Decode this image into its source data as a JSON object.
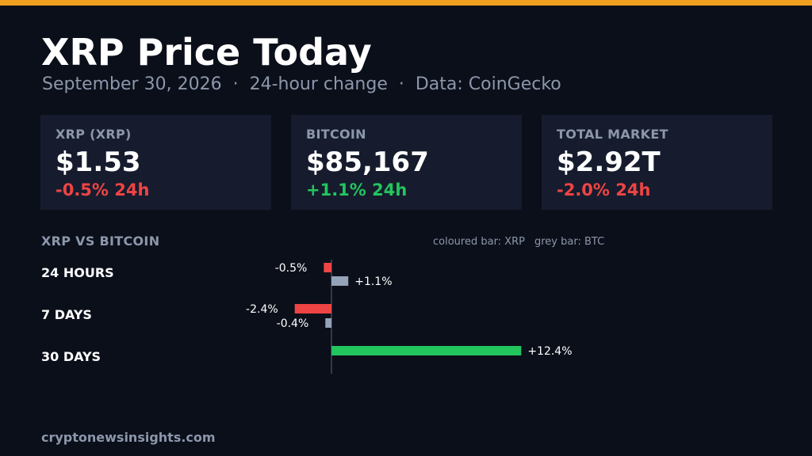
{
  "header": {
    "title": "XRP Price Today",
    "subtitle": {
      "date": "September 30, 2026",
      "separator": "·",
      "period": "24-hour change",
      "source": "Data: CoinGecko"
    }
  },
  "colors": {
    "accent": "#f0a020",
    "positive": "#22c55e",
    "negative": "#ef4444",
    "btc_bar": "#94a3b8",
    "muted": "#8c97ab"
  },
  "cards": [
    {
      "label": "XRP (XRP)",
      "value": "$1.53",
      "change": "-0.5% 24h",
      "direction": "negative"
    },
    {
      "label": "BITCOIN",
      "value": "$85,167",
      "change": "+1.1% 24h",
      "direction": "positive"
    },
    {
      "label": "TOTAL MARKET",
      "value": "$2.92T",
      "change": "-2.0% 24h",
      "direction": "negative"
    }
  ],
  "comparison": {
    "title": "XRP VS BITCOIN",
    "legend": {
      "xrp": "coloured bar: XRP",
      "btc": "grey bar: BTC"
    }
  },
  "chart_data": {
    "type": "bar",
    "orientation": "horizontal",
    "categories": [
      "24 HOURS",
      "7 DAYS",
      "30 DAYS"
    ],
    "series": [
      {
        "name": "XRP",
        "values": [
          -0.5,
          -2.4,
          12.4
        ],
        "labels": [
          "-0.5%",
          "-2.4%",
          "+12.4%"
        ]
      },
      {
        "name": "BTC",
        "values": [
          1.1,
          -0.4,
          null
        ],
        "labels": [
          "+1.1%",
          "-0.4%",
          ""
        ]
      }
    ],
    "unit": "%"
  },
  "footer": {
    "site": "cryptonewsinsights.com"
  }
}
